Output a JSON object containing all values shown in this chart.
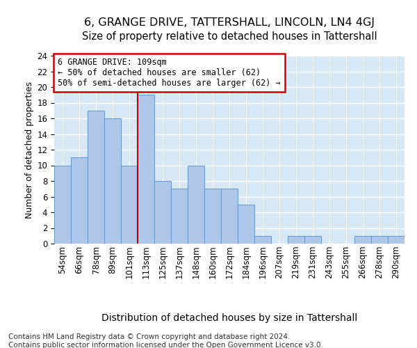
{
  "title": "6, GRANGE DRIVE, TATTERSHALL, LINCOLN, LN4 4GJ",
  "subtitle": "Size of property relative to detached houses in Tattershall",
  "xlabel": "Distribution of detached houses by size in Tattershall",
  "ylabel": "Number of detached properties",
  "categories": [
    "54sqm",
    "66sqm",
    "78sqm",
    "89sqm",
    "101sqm",
    "113sqm",
    "125sqm",
    "137sqm",
    "148sqm",
    "160sqm",
    "172sqm",
    "184sqm",
    "196sqm",
    "207sqm",
    "219sqm",
    "231sqm",
    "243sqm",
    "255sqm",
    "266sqm",
    "278sqm",
    "290sqm"
  ],
  "values": [
    10,
    11,
    17,
    16,
    10,
    19,
    8,
    7,
    10,
    7,
    7,
    5,
    1,
    0,
    1,
    1,
    0,
    0,
    1,
    1,
    1
  ],
  "bar_color": "#aec6e8",
  "bar_edge_color": "#6a9fd8",
  "vline_x": 4.5,
  "vline_color": "#cc0000",
  "annotation_box_text": "6 GRANGE DRIVE: 109sqm\n← 50% of detached houses are smaller (62)\n50% of semi-detached houses are larger (62) →",
  "annotation_box_color": "#cc0000",
  "ylim": [
    0,
    24
  ],
  "yticks": [
    0,
    2,
    4,
    6,
    8,
    10,
    12,
    14,
    16,
    18,
    20,
    22,
    24
  ],
  "grid_color": "#ffffff",
  "bg_color": "#d6e8f5",
  "footer": "Contains HM Land Registry data © Crown copyright and database right 2024.\nContains public sector information licensed under the Open Government Licence v3.0.",
  "title_fontsize": 11.5,
  "subtitle_fontsize": 10.5,
  "xlabel_fontsize": 10,
  "ylabel_fontsize": 9,
  "tick_fontsize": 8.5,
  "annotation_fontsize": 8.5,
  "footer_fontsize": 7.5
}
